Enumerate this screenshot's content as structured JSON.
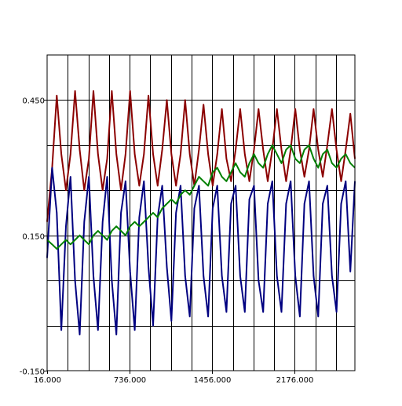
{
  "chart_data": {
    "type": "line",
    "title": "",
    "xlabel": "",
    "ylabel": "",
    "xlim": [
      16,
      2700
    ],
    "ylim": [
      -0.15,
      0.55
    ],
    "grid": true,
    "legend": "none",
    "x_tick_values": [
      16,
      736,
      1456,
      2176
    ],
    "x_tick_labels": [
      "16.000",
      "736.000",
      "1456.000",
      "2176.000"
    ],
    "y_tick_values": [
      0.45,
      0.15,
      -0.15
    ],
    "y_tick_labels": [
      "0.450",
      "0.150",
      "-0.150"
    ],
    "x_grid_values": [
      16,
      196,
      376,
      556,
      736,
      916,
      1096,
      1276,
      1456,
      1636,
      1816,
      1996,
      2176,
      2356,
      2536,
      2716
    ],
    "y_grid_values": [
      0.45,
      0.35,
      0.25,
      0.15,
      0.05,
      -0.05
    ],
    "series": [
      {
        "color": "#8b0000",
        "x": [
          16,
          60,
          100,
          140,
          180,
          220,
          260,
          300,
          340,
          380,
          420,
          460,
          500,
          540,
          580,
          620,
          660,
          700,
          740,
          780,
          820,
          860,
          900,
          940,
          980,
          1020,
          1060,
          1100,
          1140,
          1180,
          1220,
          1260,
          1300,
          1340,
          1380,
          1420,
          1460,
          1500,
          1540,
          1580,
          1620,
          1660,
          1700,
          1740,
          1780,
          1820,
          1860,
          1900,
          1940,
          1980,
          2020,
          2060,
          2100,
          2140,
          2180,
          2220,
          2260,
          2300,
          2340,
          2380,
          2420,
          2460,
          2500,
          2540,
          2580,
          2620,
          2660,
          2700
        ],
        "y": [
          0.18,
          0.3,
          0.46,
          0.33,
          0.25,
          0.33,
          0.47,
          0.34,
          0.25,
          0.32,
          0.47,
          0.33,
          0.25,
          0.32,
          0.47,
          0.33,
          0.25,
          0.33,
          0.47,
          0.33,
          0.26,
          0.33,
          0.46,
          0.33,
          0.26,
          0.34,
          0.45,
          0.33,
          0.26,
          0.33,
          0.45,
          0.33,
          0.26,
          0.34,
          0.44,
          0.33,
          0.26,
          0.33,
          0.43,
          0.32,
          0.27,
          0.34,
          0.43,
          0.33,
          0.27,
          0.34,
          0.43,
          0.34,
          0.27,
          0.34,
          0.43,
          0.34,
          0.27,
          0.34,
          0.43,
          0.34,
          0.28,
          0.34,
          0.43,
          0.34,
          0.28,
          0.35,
          0.43,
          0.34,
          0.27,
          0.34,
          0.42,
          0.32
        ]
      },
      {
        "color": "#000080",
        "x": [
          16,
          60,
          100,
          140,
          180,
          220,
          260,
          300,
          340,
          380,
          420,
          460,
          500,
          540,
          580,
          620,
          660,
          700,
          740,
          780,
          820,
          860,
          900,
          940,
          980,
          1020,
          1060,
          1100,
          1140,
          1180,
          1220,
          1260,
          1300,
          1340,
          1380,
          1420,
          1460,
          1500,
          1540,
          1580,
          1620,
          1660,
          1700,
          1740,
          1780,
          1820,
          1860,
          1900,
          1940,
          1980,
          2020,
          2060,
          2100,
          2140,
          2180,
          2220,
          2260,
          2300,
          2340,
          2380,
          2420,
          2460,
          2500,
          2540,
          2580,
          2620,
          2660,
          2700
        ],
        "y": [
          0.1,
          0.3,
          0.2,
          -0.06,
          0.17,
          0.28,
          0.05,
          -0.07,
          0.18,
          0.28,
          0.06,
          -0.06,
          0.18,
          0.28,
          0.05,
          -0.07,
          0.2,
          0.27,
          0.07,
          -0.06,
          0.19,
          0.27,
          0.08,
          -0.05,
          0.19,
          0.26,
          0.08,
          -0.04,
          0.2,
          0.26,
          0.06,
          -0.03,
          0.21,
          0.26,
          0.06,
          -0.03,
          0.21,
          0.26,
          0.06,
          -0.02,
          0.22,
          0.26,
          0.06,
          -0.02,
          0.23,
          0.26,
          0.05,
          -0.02,
          0.22,
          0.27,
          0.06,
          -0.02,
          0.22,
          0.27,
          0.06,
          -0.03,
          0.22,
          0.27,
          0.06,
          -0.03,
          0.22,
          0.26,
          0.06,
          -0.02,
          0.22,
          0.27,
          0.07,
          0.27
        ]
      },
      {
        "color": "#008000",
        "x": [
          16,
          60,
          100,
          140,
          180,
          220,
          260,
          300,
          340,
          380,
          420,
          460,
          500,
          540,
          580,
          620,
          660,
          700,
          740,
          780,
          820,
          860,
          900,
          940,
          980,
          1020,
          1060,
          1100,
          1140,
          1180,
          1220,
          1260,
          1300,
          1340,
          1380,
          1420,
          1460,
          1500,
          1540,
          1580,
          1620,
          1660,
          1700,
          1740,
          1780,
          1820,
          1860,
          1900,
          1940,
          1980,
          2020,
          2060,
          2100,
          2140,
          2180,
          2220,
          2260,
          2300,
          2340,
          2380,
          2420,
          2460,
          2500,
          2540,
          2580,
          2620,
          2660,
          2700
        ],
        "y": [
          0.14,
          0.13,
          0.12,
          0.13,
          0.14,
          0.13,
          0.14,
          0.15,
          0.14,
          0.13,
          0.15,
          0.16,
          0.15,
          0.14,
          0.16,
          0.17,
          0.16,
          0.15,
          0.17,
          0.18,
          0.17,
          0.18,
          0.19,
          0.2,
          0.19,
          0.21,
          0.22,
          0.23,
          0.22,
          0.24,
          0.25,
          0.24,
          0.26,
          0.28,
          0.27,
          0.26,
          0.29,
          0.3,
          0.28,
          0.27,
          0.29,
          0.31,
          0.29,
          0.28,
          0.31,
          0.33,
          0.31,
          0.3,
          0.33,
          0.35,
          0.33,
          0.31,
          0.34,
          0.35,
          0.32,
          0.31,
          0.34,
          0.35,
          0.32,
          0.3,
          0.33,
          0.34,
          0.31,
          0.3,
          0.32,
          0.33,
          0.31,
          0.3
        ]
      }
    ]
  }
}
